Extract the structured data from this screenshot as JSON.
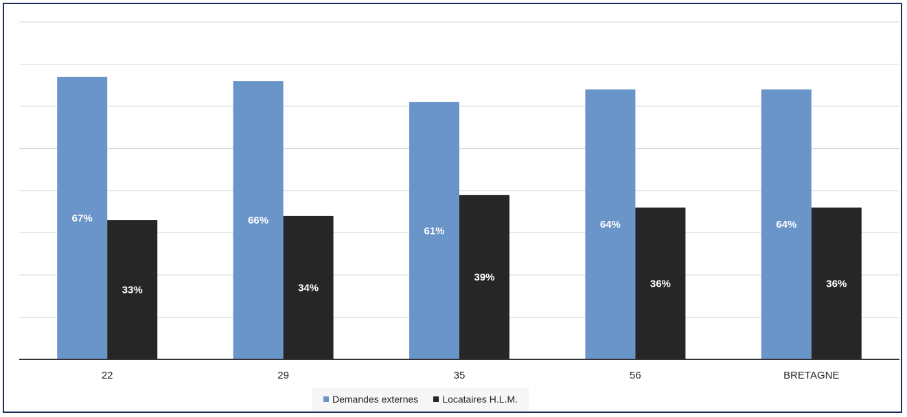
{
  "chart_data": {
    "type": "bar",
    "categories": [
      "22",
      "29",
      "35",
      "56",
      "BRETAGNE"
    ],
    "series": [
      {
        "name": "Demandes externes",
        "values": [
          67,
          66,
          61,
          64,
          64
        ],
        "labels": [
          "67%",
          "66%",
          "61%",
          "64%",
          "64%"
        ],
        "color": "#6a95c9"
      },
      {
        "name": "Locataires H.L.M.",
        "values": [
          33,
          34,
          39,
          36,
          36
        ],
        "labels": [
          "33%",
          "34%",
          "39%",
          "36%",
          "36%"
        ],
        "color": "#262626"
      }
    ],
    "title": "",
    "xlabel": "",
    "ylabel": "",
    "ylim": [
      0,
      80
    ],
    "gridlines": true,
    "grid_step": 10,
    "y_tick_labels_shown": false,
    "legend_position": "bottom"
  }
}
